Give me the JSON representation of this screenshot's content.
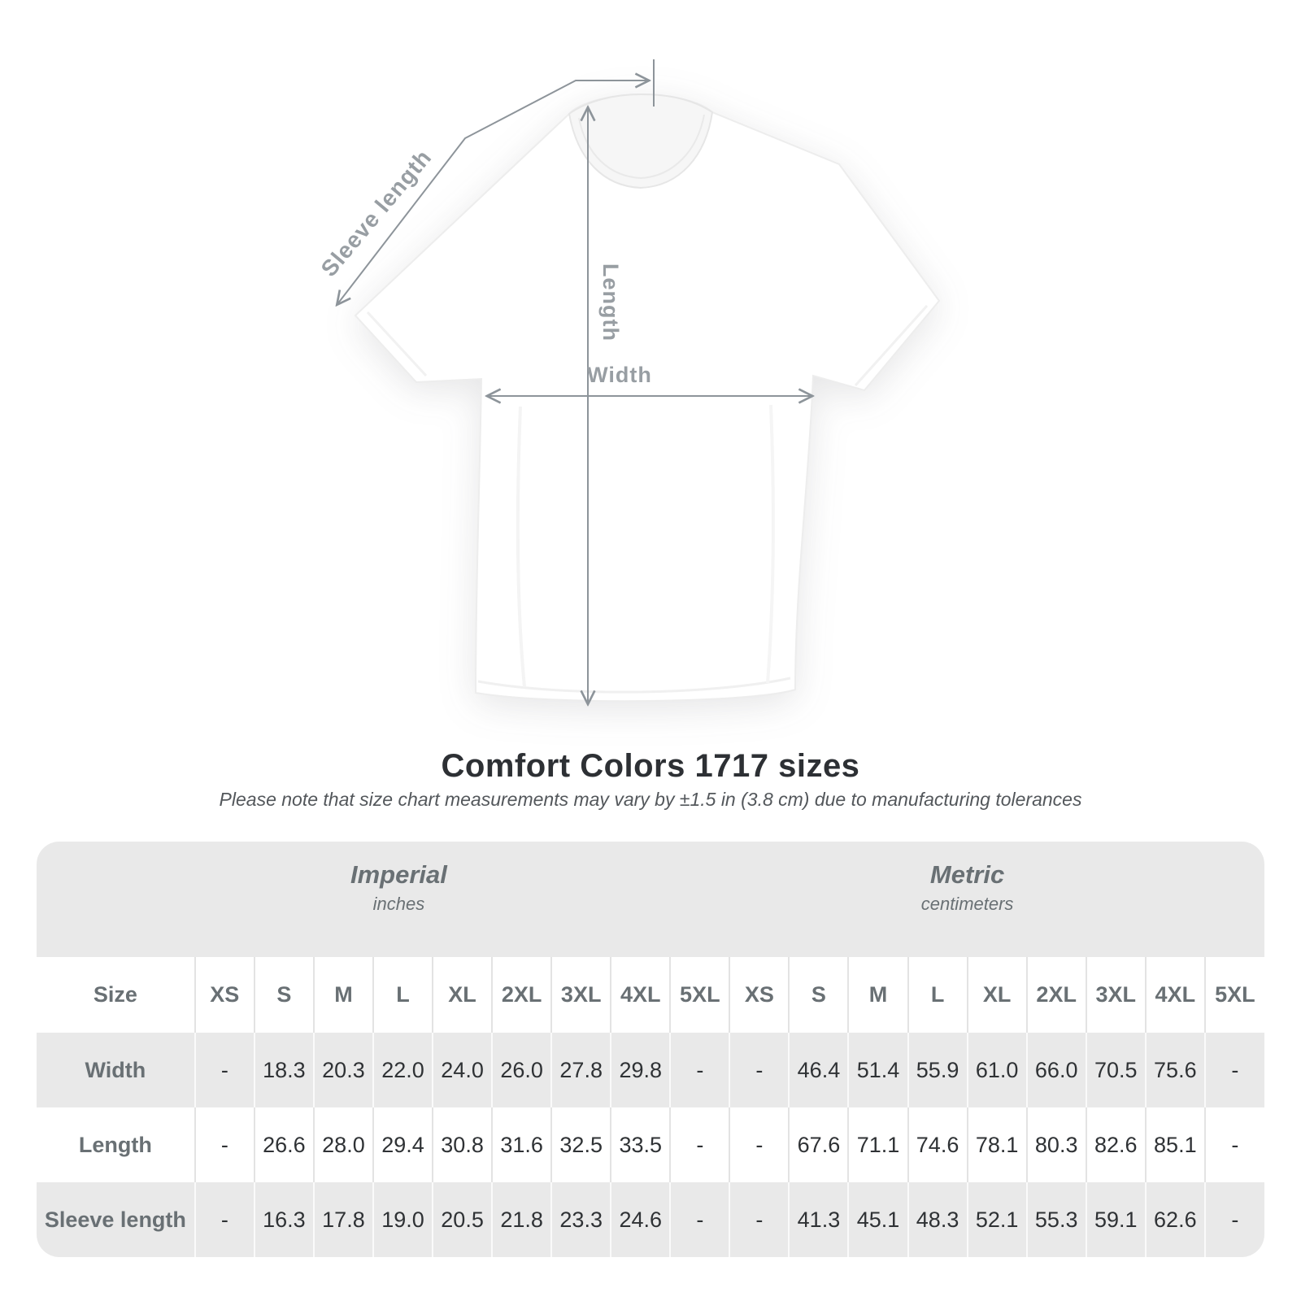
{
  "title": "Comfort Colors 1717 sizes",
  "subtitle": "Please note that size chart measurements may vary by ±1.5 in (3.8 cm) due to manufacturing tolerances",
  "diagram": {
    "labels": {
      "sleeve_length": "Sleeve length",
      "length": "Length",
      "width": "Width"
    }
  },
  "table": {
    "unit_groups": [
      {
        "label": "Imperial",
        "sublabel": "inches"
      },
      {
        "label": "Metric",
        "sublabel": "centimeters"
      }
    ],
    "size_header": "Size",
    "sizes": [
      "XS",
      "S",
      "M",
      "L",
      "XL",
      "2XL",
      "3XL",
      "4XL",
      "5XL"
    ],
    "rows": [
      {
        "label": "Width",
        "imperial": [
          "-",
          "18.3",
          "20.3",
          "22.0",
          "24.0",
          "26.0",
          "27.8",
          "29.8",
          "-"
        ],
        "metric": [
          "-",
          "46.4",
          "51.4",
          "55.9",
          "61.0",
          "66.0",
          "70.5",
          "75.6",
          "-"
        ]
      },
      {
        "label": "Length",
        "imperial": [
          "-",
          "26.6",
          "28.0",
          "29.4",
          "30.8",
          "31.6",
          "32.5",
          "33.5",
          "-"
        ],
        "metric": [
          "-",
          "67.6",
          "71.1",
          "74.6",
          "78.1",
          "80.3",
          "82.6",
          "85.1",
          "-"
        ]
      },
      {
        "label": "Sleeve length",
        "imperial": [
          "-",
          "16.3",
          "17.8",
          "19.0",
          "20.5",
          "21.8",
          "23.3",
          "24.6",
          "-"
        ],
        "metric": [
          "-",
          "41.3",
          "45.1",
          "48.3",
          "52.1",
          "55.3",
          "59.1",
          "62.6",
          "-"
        ]
      }
    ]
  },
  "colors": {
    "band_gray": "#e9e9e9",
    "annotation_gray": "#8d949a",
    "label_gray": "#989ea3",
    "title_text": "#2d3034",
    "value_text": "#2f3235",
    "header_text": "#697074"
  }
}
